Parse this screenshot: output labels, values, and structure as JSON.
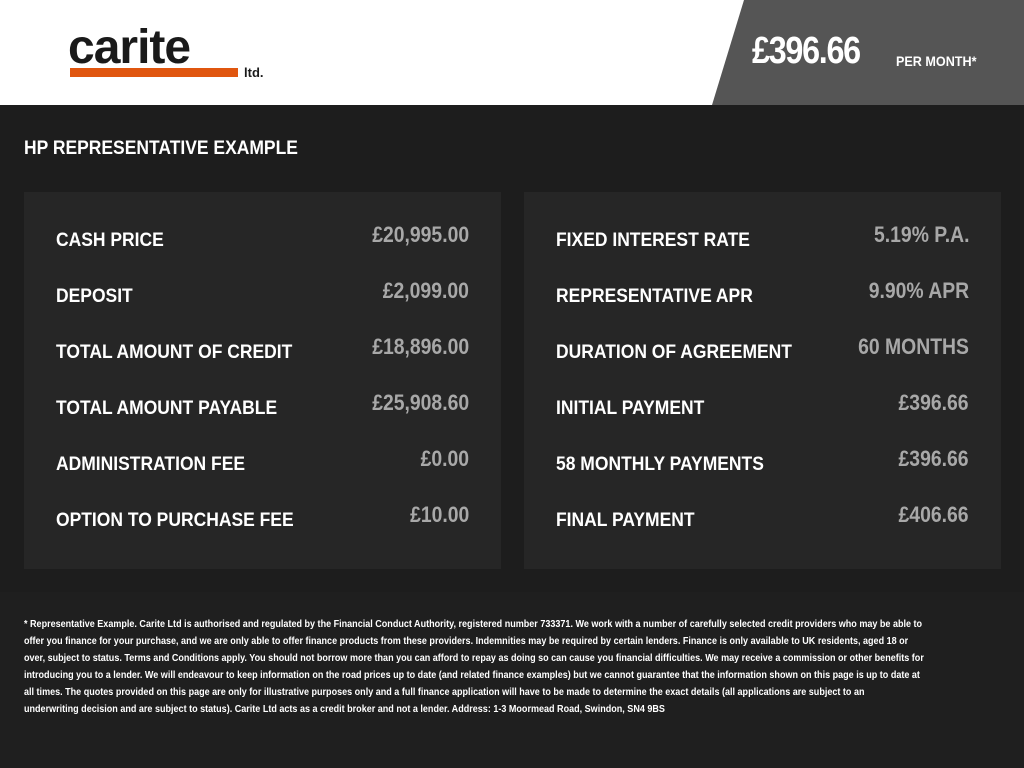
{
  "header": {
    "logo_text": "carite",
    "logo_suffix": "ltd.",
    "monthly_price": "£396.66",
    "per_month_label": "PER MONTH*",
    "accent": "#e0560f"
  },
  "title": "HP REPRESENTATIVE EXAMPLE",
  "left_panel": [
    {
      "label": "CASH PRICE",
      "value": "£20,995.00"
    },
    {
      "label": "DEPOSIT",
      "value": "£2,099.00"
    },
    {
      "label": "TOTAL AMOUNT OF CREDIT",
      "value": "£18,896.00"
    },
    {
      "label": "TOTAL AMOUNT PAYABLE",
      "value": "£25,908.60"
    },
    {
      "label": "ADMINISTRATION FEE",
      "value": "£0.00"
    },
    {
      "label": "OPTION TO PURCHASE FEE",
      "value": "£10.00"
    }
  ],
  "right_panel": [
    {
      "label": "FIXED INTEREST RATE",
      "value": "5.19% P.A."
    },
    {
      "label": "REPRESENTATIVE APR",
      "value": "9.90% APR"
    },
    {
      "label": "DURATION OF AGREEMENT",
      "value": "60 MONTHS"
    },
    {
      "label": "INITIAL PAYMENT",
      "value": "£396.66"
    },
    {
      "label": "58 MONTHLY PAYMENTS",
      "value": "£396.66"
    },
    {
      "label": "FINAL PAYMENT",
      "value": "£406.66"
    }
  ],
  "disclaimer": [
    "* Representative Example. Carite Ltd is authorised and regulated by the Financial Conduct Authority, registered number 733371. We work with a number of carefully selected credit providers who may be able to",
    "offer you finance for your purchase, and we are only able to offer finance products from these providers. Indemnities may be required by certain lenders. Finance is only available to UK residents, aged 18 or",
    "over, subject to status. Terms and Conditions apply. You should not borrow more than you can afford to repay as doing so can cause you financial difficulties. We may receive a commission or other benefits for",
    "introducing you to a lender. We will endeavour to keep information on the road prices up to date (and related finance examples) but we cannot guarantee that the information shown on this page is up to date at",
    "all times. The quotes provided on this page are only for illustrative purposes only and a full finance application will have to be made to determine the exact details (all applications are subject to an",
    "underwriting decision and are subject to status). Carite Ltd acts as a credit broker and not a lender. Address: 1-3 Moormead Road, Swindon, SN4 9BS"
  ]
}
